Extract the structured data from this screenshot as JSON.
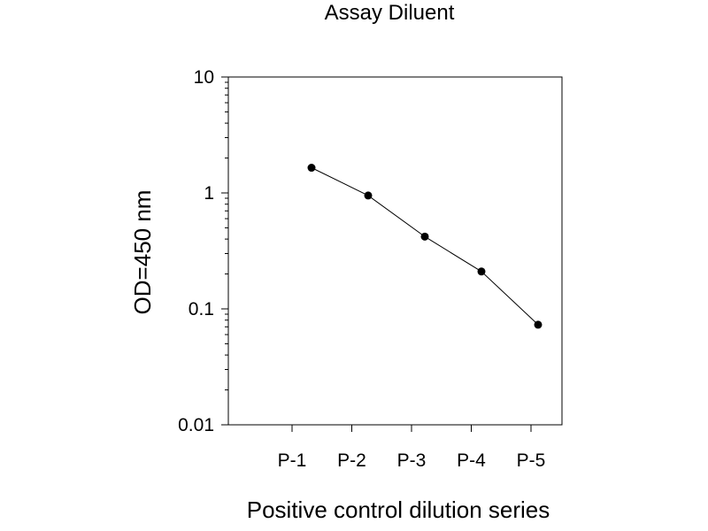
{
  "chart_data": {
    "type": "line",
    "title": "Assay Diluent",
    "xlabel": "Positive control dilution series",
    "ylabel": "OD=450 nm",
    "y_scale": "log",
    "ylim": [
      0.01,
      10
    ],
    "y_ticks": [
      "10",
      "1",
      "0.1",
      "0.01"
    ],
    "x_tick_labels": [
      "P-1",
      "P-2",
      "P-3",
      "P-4",
      "P-5"
    ],
    "categories": [
      "P-1",
      "P-2",
      "P-3",
      "P-4",
      "P-5"
    ],
    "values": [
      1.65,
      0.95,
      0.42,
      0.21,
      0.073
    ],
    "grid": false,
    "legend": "none",
    "colors": {
      "line": "#000000",
      "marker": "#000000",
      "axes": "#000000"
    }
  }
}
